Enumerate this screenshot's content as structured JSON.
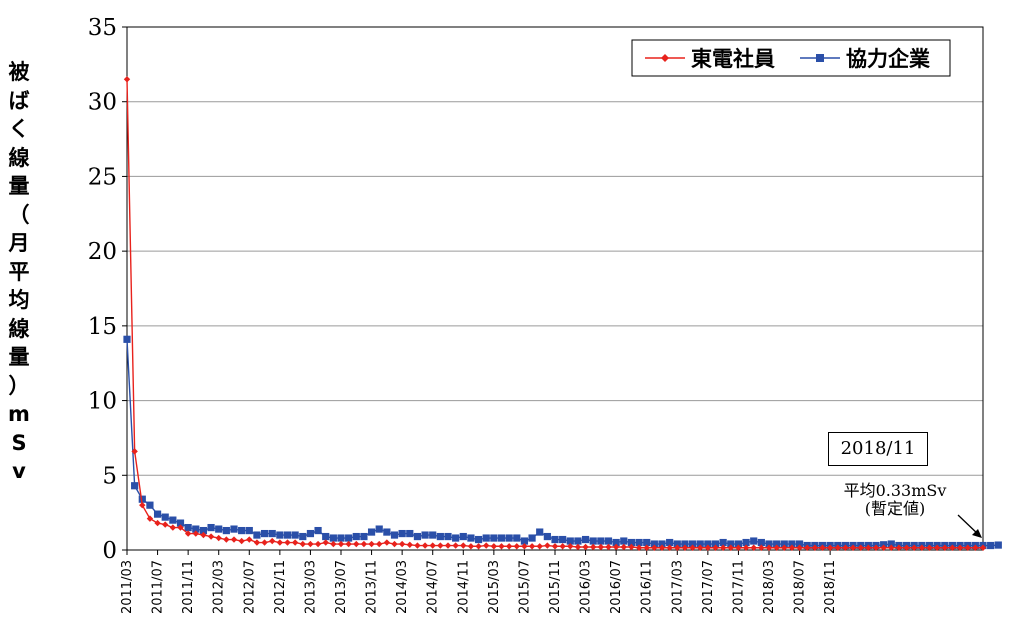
{
  "chart_data": {
    "type": "line",
    "title": "",
    "ylabel": "被ばく線量（月平均線量）mSv",
    "ylabel_chars": [
      "被",
      "ば",
      "く",
      "線",
      "量",
      "（",
      "月",
      "平",
      "均",
      "線",
      "量",
      "）",
      "m",
      "S",
      "v"
    ],
    "ylim": [
      0,
      35
    ],
    "yticks": [
      "0",
      "5",
      "10",
      "15",
      "20",
      "25",
      "30",
      "35"
    ],
    "grid": "horizontal",
    "legend_placement": "top-right",
    "start_month": "2011/03",
    "x_tick_labels": [
      "2011/03",
      "2011/07",
      "2011/11",
      "2012/03",
      "2012/07",
      "2012/11",
      "2013/03",
      "2013/07",
      "2013/11",
      "2014/03",
      "2014/07",
      "2014/11",
      "2015/03",
      "2015/07",
      "2015/11",
      "2016/03",
      "2016/07",
      "2016/11",
      "2017/03",
      "2017/07",
      "2017/11",
      "2018/03",
      "2018/07",
      "2018/11"
    ],
    "series": [
      {
        "name": "東電社員",
        "color": "#e8221c",
        "marker": "diamond",
        "values": [
          31.5,
          6.6,
          3.0,
          2.1,
          1.8,
          1.7,
          1.5,
          1.5,
          1.1,
          1.1,
          1.0,
          0.9,
          0.8,
          0.7,
          0.7,
          0.6,
          0.7,
          0.5,
          0.5,
          0.6,
          0.5,
          0.5,
          0.5,
          0.4,
          0.4,
          0.4,
          0.5,
          0.4,
          0.4,
          0.4,
          0.4,
          0.4,
          0.4,
          0.4,
          0.5,
          0.4,
          0.4,
          0.35,
          0.3,
          0.3,
          0.3,
          0.3,
          0.3,
          0.3,
          0.3,
          0.25,
          0.25,
          0.3,
          0.25,
          0.25,
          0.25,
          0.25,
          0.25,
          0.25,
          0.25,
          0.3,
          0.25,
          0.25,
          0.25,
          0.2,
          0.2,
          0.2,
          0.2,
          0.2,
          0.2,
          0.2,
          0.2,
          0.15,
          0.15,
          0.15,
          0.15,
          0.15,
          0.15,
          0.15,
          0.15,
          0.15,
          0.15,
          0.15,
          0.15,
          0.15,
          0.15,
          0.15,
          0.15,
          0.15,
          0.15,
          0.15,
          0.15,
          0.15,
          0.15,
          0.15,
          0.15,
          0.15,
          0.15,
          0.15,
          0.15,
          0.15,
          0.15,
          0.15,
          0.15,
          0.15,
          0.15,
          0.15,
          0.15,
          0.15,
          0.15,
          0.15,
          0.15,
          0.15,
          0.15,
          0.15,
          0.15,
          0.15,
          0.15
        ]
      },
      {
        "name": "協力企業",
        "color": "#2a4fa8",
        "marker": "square",
        "values": [
          14.1,
          4.3,
          3.4,
          3.0,
          2.4,
          2.2,
          2.0,
          1.8,
          1.5,
          1.4,
          1.3,
          1.5,
          1.4,
          1.3,
          1.4,
          1.3,
          1.3,
          1.0,
          1.1,
          1.1,
          1.0,
          1.0,
          1.0,
          0.9,
          1.1,
          1.3,
          0.9,
          0.8,
          0.8,
          0.8,
          0.9,
          0.9,
          1.2,
          1.4,
          1.2,
          1.0,
          1.1,
          1.1,
          0.9,
          1.0,
          1.0,
          0.9,
          0.9,
          0.8,
          0.9,
          0.8,
          0.7,
          0.8,
          0.8,
          0.8,
          0.8,
          0.8,
          0.6,
          0.8,
          1.2,
          0.9,
          0.7,
          0.7,
          0.6,
          0.6,
          0.7,
          0.6,
          0.6,
          0.6,
          0.5,
          0.6,
          0.5,
          0.5,
          0.5,
          0.4,
          0.4,
          0.5,
          0.4,
          0.4,
          0.4,
          0.4,
          0.4,
          0.4,
          0.5,
          0.4,
          0.4,
          0.5,
          0.6,
          0.5,
          0.4,
          0.4,
          0.4,
          0.4,
          0.4,
          0.3,
          0.3,
          0.3,
          0.3,
          0.3,
          0.3,
          0.3,
          0.3,
          0.3,
          0.3,
          0.35,
          0.4,
          0.3,
          0.3,
          0.3,
          0.3,
          0.3,
          0.3,
          0.3,
          0.3,
          0.3,
          0.3,
          0.3,
          0.3,
          0.3,
          0.33
        ]
      }
    ],
    "annotation": {
      "box_label": "2018/11",
      "line1": "平均0.33mSv",
      "line2": "(暫定値)"
    }
  }
}
